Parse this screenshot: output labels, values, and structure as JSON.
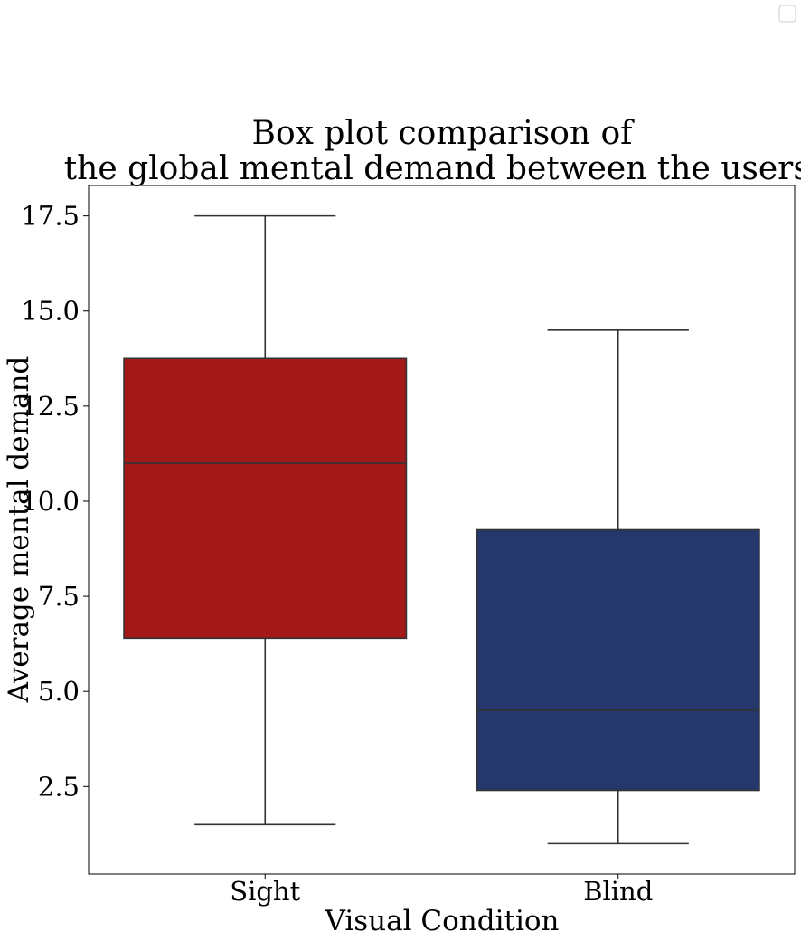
{
  "chart_data": {
    "type": "box",
    "title_lines": [
      "Box plot comparison of",
      "the global mental demand between the users."
    ],
    "xlabel": "Visual Condition",
    "ylabel": "Average mental demand",
    "ylim": [
      0.2,
      18.3
    ],
    "yticks": [
      2.5,
      5.0,
      7.5,
      10.0,
      12.5,
      15.0,
      17.5
    ],
    "ytick_labels": [
      "2.5",
      "5.0",
      "7.5",
      "10.0",
      "12.5",
      "15.0",
      "17.5"
    ],
    "categories": [
      "Sight",
      "Blind"
    ],
    "boxes": [
      {
        "category": "Sight",
        "min": 1.5,
        "q1": 6.4,
        "median": 11.0,
        "q3": 13.75,
        "max": 17.5,
        "color": "#a31818"
      },
      {
        "category": "Blind",
        "min": 1.0,
        "q1": 2.4,
        "median": 4.5,
        "q3": 9.25,
        "max": 14.5,
        "color": "#26376b"
      }
    ],
    "legend": {
      "placement": "top-right",
      "entries": []
    },
    "grid": false
  }
}
